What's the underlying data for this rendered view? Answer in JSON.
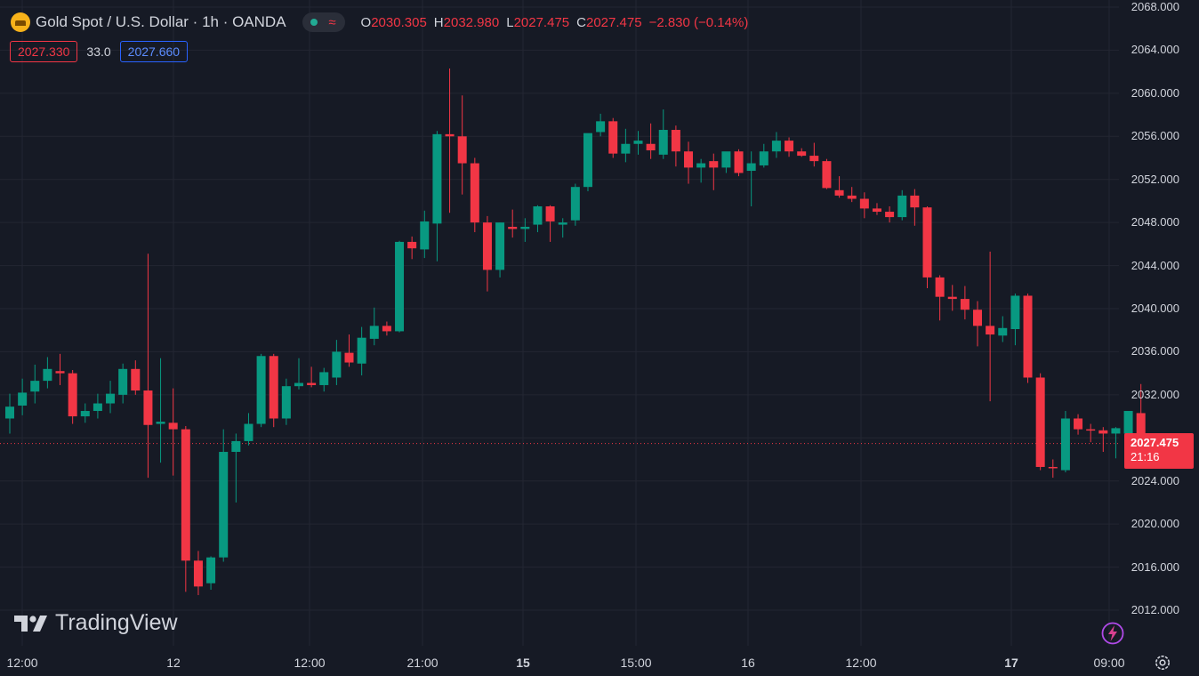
{
  "symbol": {
    "title": "Gold Spot / U.S. Dollar · 1h · OANDA",
    "icon": "gold-coin-icon"
  },
  "ohlc": {
    "open_label": "O",
    "open": "2030.305",
    "high_label": "H",
    "high": "2032.980",
    "low_label": "L",
    "low": "2027.475",
    "close_label": "C",
    "close": "2027.475",
    "change": "−2.830 (−0.14%)"
  },
  "quote": {
    "bid": "2027.330",
    "spread": "33.0",
    "ask": "2027.660"
  },
  "price_axis": {
    "labels": [
      "2068.000",
      "2064.000",
      "2060.000",
      "2056.000",
      "2052.000",
      "2048.000",
      "2044.000",
      "2040.000",
      "2036.000",
      "2032.000",
      "2024.000",
      "2020.000",
      "2016.000",
      "2012.000"
    ],
    "current_price": "2027.475",
    "countdown": "21:16"
  },
  "time_axis": {
    "labels": [
      "12:00",
      "12",
      "12:00",
      "21:00",
      "15",
      "15:00",
      "16",
      "12:00",
      "17",
      "09:00"
    ]
  },
  "brand": {
    "name": "TradingView"
  },
  "colors": {
    "background": "#161a25",
    "up": "#089981",
    "down": "#f23645",
    "grid": "#232632",
    "text": "#d1d4dc"
  },
  "chart_data": {
    "type": "candlestick",
    "ylim": [
      2010,
      2069
    ],
    "price_ticks": [
      2068,
      2064,
      2060,
      2056,
      2052,
      2048,
      2044,
      2040,
      2036,
      2032,
      2028,
      2024,
      2020,
      2016,
      2012
    ],
    "last_price": 2027.475,
    "candles": [
      {
        "o": 2029.8,
        "h": 2032.1,
        "l": 2028.4,
        "c": 2030.9
      },
      {
        "o": 2031.0,
        "h": 2033.5,
        "l": 2030.1,
        "c": 2032.2
      },
      {
        "o": 2032.3,
        "h": 2034.8,
        "l": 2031.2,
        "c": 2033.3
      },
      {
        "o": 2033.3,
        "h": 2035.5,
        "l": 2032.6,
        "c": 2034.4
      },
      {
        "o": 2034.2,
        "h": 2035.8,
        "l": 2032.9,
        "c": 2034.0
      },
      {
        "o": 2034.0,
        "h": 2034.3,
        "l": 2029.3,
        "c": 2030.0
      },
      {
        "o": 2030.0,
        "h": 2031.2,
        "l": 2029.4,
        "c": 2030.5
      },
      {
        "o": 2030.5,
        "h": 2032.1,
        "l": 2029.8,
        "c": 2031.2
      },
      {
        "o": 2031.2,
        "h": 2033.3,
        "l": 2030.3,
        "c": 2032.1
      },
      {
        "o": 2032.0,
        "h": 2034.9,
        "l": 2031.2,
        "c": 2034.4
      },
      {
        "o": 2034.4,
        "h": 2035.2,
        "l": 2032.0,
        "c": 2032.4
      },
      {
        "o": 2032.4,
        "h": 2045.1,
        "l": 2024.3,
        "c": 2029.2
      },
      {
        "o": 2029.3,
        "h": 2035.4,
        "l": 2025.7,
        "c": 2029.5
      },
      {
        "o": 2029.4,
        "h": 2032.6,
        "l": 2024.5,
        "c": 2028.8
      },
      {
        "o": 2028.8,
        "h": 2029.1,
        "l": 2013.7,
        "c": 2016.6
      },
      {
        "o": 2016.6,
        "h": 2017.5,
        "l": 2013.4,
        "c": 2014.2
      },
      {
        "o": 2014.5,
        "h": 2017.0,
        "l": 2013.9,
        "c": 2016.9
      },
      {
        "o": 2016.9,
        "h": 2028.8,
        "l": 2016.5,
        "c": 2026.7
      },
      {
        "o": 2026.7,
        "h": 2028.4,
        "l": 2022.0,
        "c": 2027.7
      },
      {
        "o": 2027.7,
        "h": 2030.3,
        "l": 2027.3,
        "c": 2029.3
      },
      {
        "o": 2029.3,
        "h": 2035.8,
        "l": 2029.0,
        "c": 2035.6
      },
      {
        "o": 2035.6,
        "h": 2035.8,
        "l": 2029.0,
        "c": 2029.8
      },
      {
        "o": 2029.8,
        "h": 2033.5,
        "l": 2029.2,
        "c": 2032.8
      },
      {
        "o": 2032.8,
        "h": 2035.4,
        "l": 2032.5,
        "c": 2033.1
      },
      {
        "o": 2033.1,
        "h": 2034.6,
        "l": 2032.7,
        "c": 2032.9
      },
      {
        "o": 2032.9,
        "h": 2034.5,
        "l": 2032.3,
        "c": 2034.1
      },
      {
        "o": 2033.6,
        "h": 2037.1,
        "l": 2032.9,
        "c": 2036.0
      },
      {
        "o": 2035.9,
        "h": 2037.6,
        "l": 2034.6,
        "c": 2035.0
      },
      {
        "o": 2034.9,
        "h": 2038.3,
        "l": 2033.8,
        "c": 2037.3
      },
      {
        "o": 2037.2,
        "h": 2040.1,
        "l": 2036.6,
        "c": 2038.4
      },
      {
        "o": 2038.4,
        "h": 2038.8,
        "l": 2037.5,
        "c": 2037.9
      },
      {
        "o": 2037.9,
        "h": 2046.3,
        "l": 2037.8,
        "c": 2046.2
      },
      {
        "o": 2046.2,
        "h": 2046.7,
        "l": 2044.6,
        "c": 2045.6
      },
      {
        "o": 2045.5,
        "h": 2049.1,
        "l": 2044.7,
        "c": 2048.1
      },
      {
        "o": 2047.9,
        "h": 2056.5,
        "l": 2044.4,
        "c": 2056.2
      },
      {
        "o": 2056.2,
        "h": 2062.3,
        "l": 2048.9,
        "c": 2056.0
      },
      {
        "o": 2056.0,
        "h": 2059.8,
        "l": 2050.6,
        "c": 2053.5
      },
      {
        "o": 2053.5,
        "h": 2054.0,
        "l": 2047.1,
        "c": 2048.0
      },
      {
        "o": 2048.0,
        "h": 2048.6,
        "l": 2041.6,
        "c": 2043.6
      },
      {
        "o": 2043.6,
        "h": 2048.0,
        "l": 2042.9,
        "c": 2048.0
      },
      {
        "o": 2047.6,
        "h": 2049.2,
        "l": 2046.6,
        "c": 2047.4
      },
      {
        "o": 2047.4,
        "h": 2048.4,
        "l": 2046.2,
        "c": 2047.6
      },
      {
        "o": 2047.8,
        "h": 2049.6,
        "l": 2047.1,
        "c": 2049.5
      },
      {
        "o": 2049.5,
        "h": 2049.6,
        "l": 2046.2,
        "c": 2048.1
      },
      {
        "o": 2047.8,
        "h": 2048.4,
        "l": 2046.6,
        "c": 2048.0
      },
      {
        "o": 2048.2,
        "h": 2051.6,
        "l": 2047.7,
        "c": 2051.3
      },
      {
        "o": 2051.3,
        "h": 2056.1,
        "l": 2050.9,
        "c": 2056.3
      },
      {
        "o": 2056.4,
        "h": 2058.1,
        "l": 2056.0,
        "c": 2057.4
      },
      {
        "o": 2057.4,
        "h": 2057.7,
        "l": 2054.0,
        "c": 2054.4
      },
      {
        "o": 2054.4,
        "h": 2056.7,
        "l": 2053.6,
        "c": 2055.3
      },
      {
        "o": 2055.3,
        "h": 2056.5,
        "l": 2054.3,
        "c": 2055.6
      },
      {
        "o": 2055.3,
        "h": 2057.2,
        "l": 2053.9,
        "c": 2054.7
      },
      {
        "o": 2054.3,
        "h": 2058.5,
        "l": 2053.9,
        "c": 2056.6
      },
      {
        "o": 2056.6,
        "h": 2057.0,
        "l": 2053.2,
        "c": 2054.6
      },
      {
        "o": 2054.6,
        "h": 2055.5,
        "l": 2051.6,
        "c": 2053.1
      },
      {
        "o": 2053.1,
        "h": 2053.9,
        "l": 2051.7,
        "c": 2053.5
      },
      {
        "o": 2053.7,
        "h": 2054.4,
        "l": 2051.0,
        "c": 2053.1
      },
      {
        "o": 2053.1,
        "h": 2054.3,
        "l": 2052.6,
        "c": 2054.6
      },
      {
        "o": 2054.6,
        "h": 2054.8,
        "l": 2052.3,
        "c": 2052.6
      },
      {
        "o": 2052.8,
        "h": 2054.6,
        "l": 2049.5,
        "c": 2053.5
      },
      {
        "o": 2053.3,
        "h": 2055.3,
        "l": 2053.1,
        "c": 2054.6
      },
      {
        "o": 2054.6,
        "h": 2056.4,
        "l": 2054.0,
        "c": 2055.6
      },
      {
        "o": 2055.6,
        "h": 2055.9,
        "l": 2054.1,
        "c": 2054.6
      },
      {
        "o": 2054.6,
        "h": 2054.9,
        "l": 2054.1,
        "c": 2054.2
      },
      {
        "o": 2054.2,
        "h": 2055.4,
        "l": 2053.2,
        "c": 2053.7
      },
      {
        "o": 2053.7,
        "h": 2053.9,
        "l": 2051.1,
        "c": 2051.2
      },
      {
        "o": 2051.0,
        "h": 2052.3,
        "l": 2050.3,
        "c": 2050.5
      },
      {
        "o": 2050.5,
        "h": 2051.3,
        "l": 2049.9,
        "c": 2050.2
      },
      {
        "o": 2050.2,
        "h": 2050.8,
        "l": 2048.4,
        "c": 2049.3
      },
      {
        "o": 2049.3,
        "h": 2049.8,
        "l": 2048.7,
        "c": 2049.0
      },
      {
        "o": 2049.0,
        "h": 2049.5,
        "l": 2048.0,
        "c": 2048.5
      },
      {
        "o": 2048.5,
        "h": 2051.0,
        "l": 2048.2,
        "c": 2050.5
      },
      {
        "o": 2050.5,
        "h": 2051.1,
        "l": 2047.7,
        "c": 2049.4
      },
      {
        "o": 2049.4,
        "h": 2049.5,
        "l": 2041.9,
        "c": 2042.9
      },
      {
        "o": 2042.9,
        "h": 2043.1,
        "l": 2038.9,
        "c": 2041.1
      },
      {
        "o": 2041.1,
        "h": 2042.2,
        "l": 2039.8,
        "c": 2040.9
      },
      {
        "o": 2040.9,
        "h": 2042.1,
        "l": 2039.0,
        "c": 2039.9
      },
      {
        "o": 2039.9,
        "h": 2040.7,
        "l": 2036.5,
        "c": 2038.4
      },
      {
        "o": 2038.4,
        "h": 2045.3,
        "l": 2031.4,
        "c": 2037.6
      },
      {
        "o": 2037.5,
        "h": 2039.3,
        "l": 2036.9,
        "c": 2038.2
      },
      {
        "o": 2038.1,
        "h": 2041.4,
        "l": 2036.6,
        "c": 2041.2
      },
      {
        "o": 2041.2,
        "h": 2041.4,
        "l": 2033.1,
        "c": 2033.6
      },
      {
        "o": 2033.6,
        "h": 2034.0,
        "l": 2025.0,
        "c": 2025.3
      },
      {
        "o": 2025.3,
        "h": 2026.0,
        "l": 2024.3,
        "c": 2025.2
      },
      {
        "o": 2025.0,
        "h": 2030.5,
        "l": 2024.8,
        "c": 2029.8
      },
      {
        "o": 2029.8,
        "h": 2030.2,
        "l": 2028.3,
        "c": 2028.8
      },
      {
        "o": 2028.8,
        "h": 2029.3,
        "l": 2027.6,
        "c": 2028.7
      },
      {
        "o": 2028.7,
        "h": 2029.0,
        "l": 2026.7,
        "c": 2028.4
      },
      {
        "o": 2028.4,
        "h": 2029.0,
        "l": 2026.1,
        "c": 2028.9
      },
      {
        "o": 2028.4,
        "h": 2030.4,
        "l": 2026.5,
        "c": 2030.5
      },
      {
        "o": 2030.3,
        "h": 2033.0,
        "l": 2027.5,
        "c": 2027.5
      }
    ]
  }
}
